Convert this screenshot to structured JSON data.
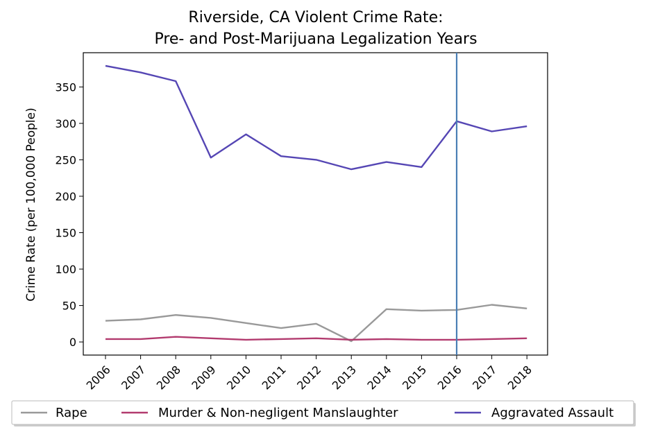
{
  "chart_data": {
    "type": "line",
    "title": "Riverside, CA Violent Crime Rate:",
    "subtitle": "Pre- and Post-Marijuana Legalization Years",
    "xlabel": "",
    "ylabel": "Crime Rate (per 100,000 People)",
    "categories": [
      "2006",
      "2007",
      "2008",
      "2009",
      "2010",
      "2011",
      "2012",
      "2013",
      "2014",
      "2015",
      "2016",
      "2017",
      "2018"
    ],
    "ylim": [
      -18,
      397
    ],
    "yticks": [
      0,
      50,
      100,
      150,
      200,
      250,
      300,
      350
    ],
    "vertical_marker": "2016",
    "grid": false,
    "legend_placement": "bottom",
    "series": [
      {
        "name": "Rape",
        "color": "#999999",
        "values": [
          29,
          31,
          37,
          33,
          26,
          19,
          25,
          1,
          45,
          43,
          44,
          51,
          46
        ]
      },
      {
        "name": "Murder & Non-negligent Manslaughter",
        "color": "#b23a6e",
        "values": [
          4,
          4,
          7,
          5,
          3,
          4,
          5,
          3,
          4,
          3,
          3,
          4,
          5
        ]
      },
      {
        "name": "Aggravated Assault",
        "color": "#5546b4",
        "values": [
          379,
          370,
          358,
          253,
          285,
          255,
          250,
          237,
          247,
          240,
          303,
          289,
          296
        ]
      }
    ],
    "marker_color": "#4a7fb5"
  }
}
